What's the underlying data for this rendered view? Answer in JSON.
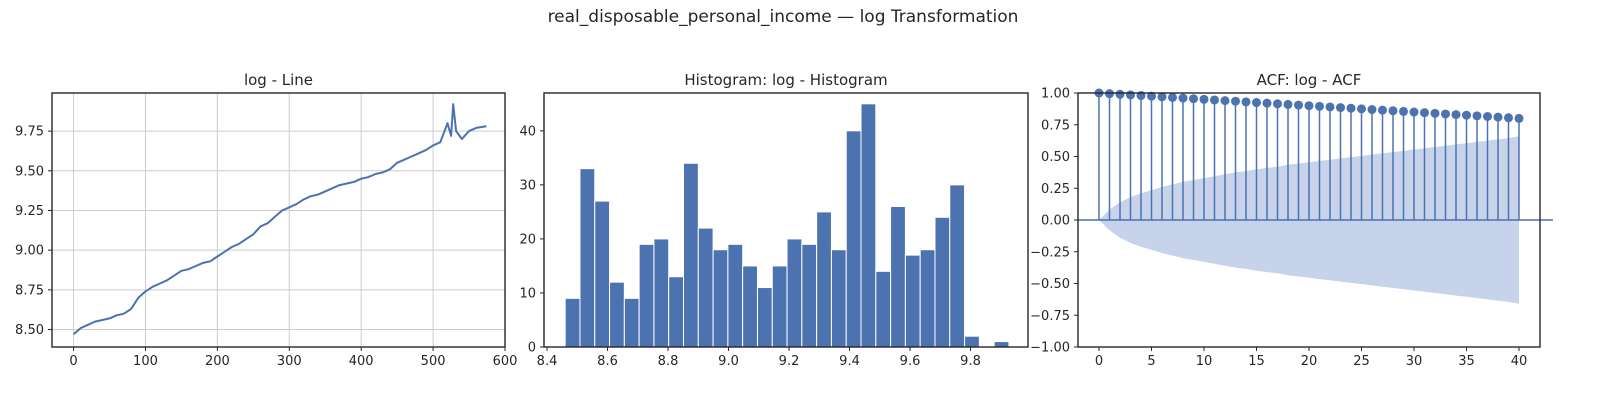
{
  "figure": {
    "suptitle": "real_disposable_personal_income — log Transformation",
    "colors": {
      "primary": "#4c72b0",
      "band": "#c6d3ea",
      "grid": "#cccccc",
      "axis": "#262626"
    }
  },
  "chart_data": [
    {
      "type": "line",
      "title": "log - Line",
      "xlabel": "",
      "ylabel": "",
      "xlim": [
        -30,
        600
      ],
      "ylim": [
        8.39,
        9.99
      ],
      "xticks": [
        0,
        100,
        200,
        300,
        400,
        500,
        600
      ],
      "yticks": [
        8.5,
        8.75,
        9.0,
        9.25,
        9.5,
        9.75
      ],
      "ytick_labels": [
        "8.50",
        "8.75",
        "9.00",
        "9.25",
        "9.50",
        "9.75"
      ],
      "grid": true,
      "series": [
        {
          "x": [
            0,
            10,
            20,
            30,
            40,
            50,
            60,
            70,
            80,
            90,
            100,
            110,
            120,
            130,
            140,
            150,
            160,
            170,
            180,
            190,
            200,
            210,
            220,
            230,
            240,
            250,
            260,
            270,
            280,
            290,
            300,
            310,
            320,
            330,
            340,
            350,
            360,
            370,
            380,
            390,
            400,
            410,
            420,
            430,
            440,
            450,
            460,
            470,
            480,
            490,
            500,
            510,
            520,
            525,
            528,
            532,
            540,
            550,
            560,
            574
          ],
          "y": [
            8.47,
            8.51,
            8.53,
            8.55,
            8.56,
            8.57,
            8.59,
            8.6,
            8.63,
            8.7,
            8.74,
            8.77,
            8.79,
            8.81,
            8.84,
            8.87,
            8.88,
            8.9,
            8.92,
            8.93,
            8.96,
            8.99,
            9.02,
            9.04,
            9.07,
            9.1,
            9.15,
            9.17,
            9.21,
            9.25,
            9.27,
            9.29,
            9.32,
            9.34,
            9.35,
            9.37,
            9.39,
            9.41,
            9.42,
            9.43,
            9.45,
            9.46,
            9.48,
            9.49,
            9.51,
            9.55,
            9.57,
            9.59,
            9.61,
            9.63,
            9.66,
            9.68,
            9.8,
            9.72,
            9.92,
            9.75,
            9.7,
            9.75,
            9.77,
            9.78
          ]
        }
      ]
    },
    {
      "type": "bar",
      "title": "Histogram: log - Histogram",
      "xlabel": "",
      "ylabel": "",
      "xlim": [
        8.39,
        9.99
      ],
      "ylim": [
        0,
        47
      ],
      "xticks": [
        8.4,
        8.6,
        8.8,
        9.0,
        9.2,
        9.4,
        9.6,
        9.8
      ],
      "xtick_labels": [
        "8.4",
        "8.6",
        "8.8",
        "9.0",
        "9.2",
        "9.4",
        "9.6",
        "9.8"
      ],
      "yticks": [
        0,
        10,
        20,
        30,
        40
      ],
      "grid": false,
      "bin_start": 8.46,
      "bin_width": 0.0489,
      "counts": [
        9,
        33,
        27,
        12,
        9,
        19,
        20,
        13,
        34,
        22,
        18,
        19,
        15,
        11,
        15,
        20,
        19,
        25,
        18,
        40,
        45,
        14,
        26,
        17,
        18,
        24,
        30,
        2,
        0,
        1
      ]
    },
    {
      "type": "stem",
      "title": "ACF: log - ACF",
      "xlabel": "",
      "ylabel": "",
      "xlim": [
        -2,
        42
      ],
      "ylim": [
        -1.0,
        1.0
      ],
      "xticks": [
        0,
        5,
        10,
        15,
        20,
        25,
        30,
        35,
        40
      ],
      "yticks": [
        -1.0,
        -0.75,
        -0.5,
        -0.25,
        0.0,
        0.25,
        0.5,
        0.75,
        1.0
      ],
      "ytick_labels": [
        "−1.00",
        "−0.75",
        "−0.50",
        "−0.25",
        "0.00",
        "0.25",
        "0.50",
        "0.75",
        "1.00"
      ],
      "grid": false,
      "lags": [
        0,
        1,
        2,
        3,
        4,
        5,
        6,
        7,
        8,
        9,
        10,
        11,
        12,
        13,
        14,
        15,
        16,
        17,
        18,
        19,
        20,
        21,
        22,
        23,
        24,
        25,
        26,
        27,
        28,
        29,
        30,
        31,
        32,
        33,
        34,
        35,
        36,
        37,
        38,
        39,
        40
      ],
      "values": [
        1.0,
        0.995,
        0.99,
        0.985,
        0.98,
        0.975,
        0.97,
        0.965,
        0.96,
        0.955,
        0.95,
        0.945,
        0.94,
        0.935,
        0.93,
        0.925,
        0.92,
        0.915,
        0.91,
        0.905,
        0.9,
        0.895,
        0.89,
        0.885,
        0.88,
        0.875,
        0.87,
        0.865,
        0.86,
        0.855,
        0.85,
        0.845,
        0.84,
        0.835,
        0.83,
        0.825,
        0.82,
        0.815,
        0.81,
        0.805,
        0.8
      ],
      "conf_band": [
        0,
        0.08,
        0.14,
        0.18,
        0.21,
        0.235,
        0.26,
        0.28,
        0.3,
        0.315,
        0.33,
        0.345,
        0.36,
        0.375,
        0.385,
        0.4,
        0.41,
        0.42,
        0.435,
        0.445,
        0.455,
        0.465,
        0.475,
        0.485,
        0.495,
        0.505,
        0.515,
        0.525,
        0.535,
        0.545,
        0.555,
        0.565,
        0.575,
        0.585,
        0.595,
        0.605,
        0.615,
        0.625,
        0.635,
        0.645,
        0.66
      ]
    }
  ]
}
